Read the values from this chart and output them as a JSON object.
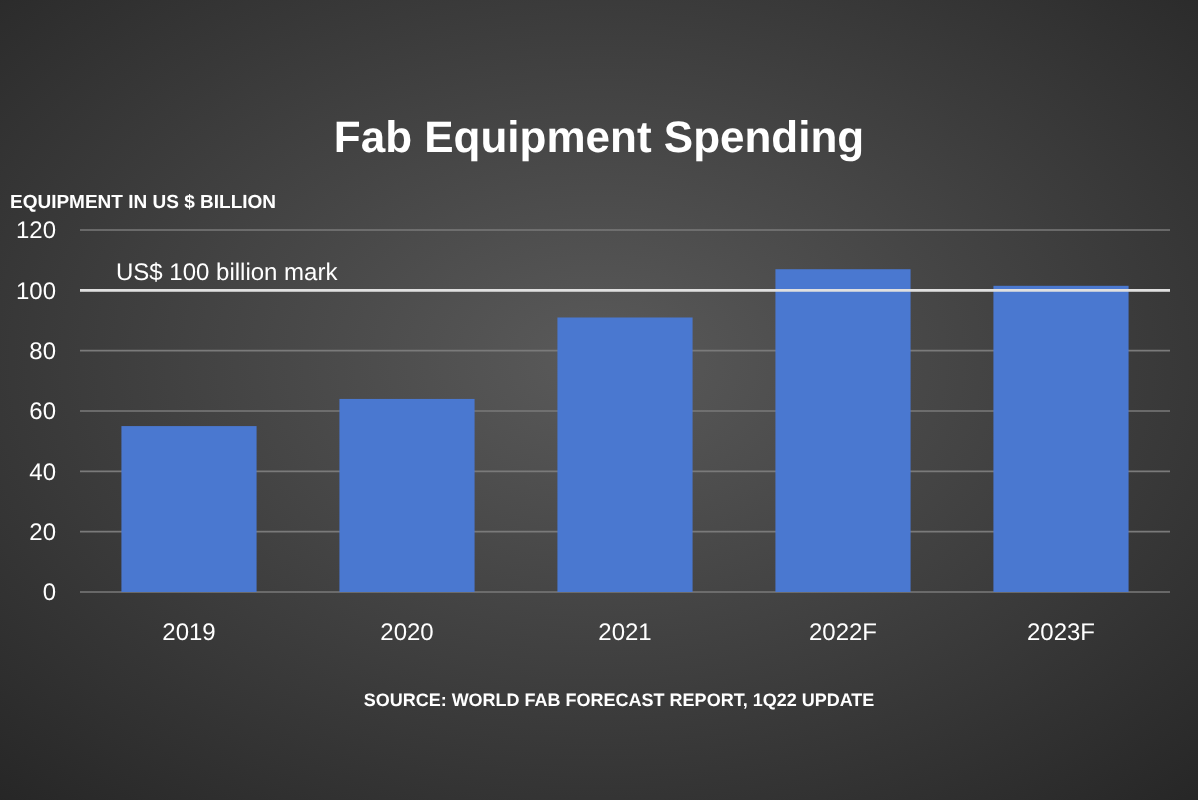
{
  "chart_data": {
    "type": "bar",
    "title": "Fab Equipment Spending",
    "ylabel": "EQUIPMENT IN US $ BILLION",
    "categories": [
      "2019",
      "2020",
      "2021",
      "2022F",
      "2023F"
    ],
    "values": [
      55,
      64,
      91,
      107,
      101.5
    ],
    "color": "#4a78d0",
    "ylim": [
      0,
      120
    ],
    "yticks": [
      0,
      20,
      40,
      60,
      80,
      100,
      120
    ],
    "grid": "y",
    "ref_lines": [
      {
        "axis": "y",
        "value": 100,
        "label": "US$ 100 billion mark",
        "color": "#e0e0e0"
      }
    ],
    "annotations": [
      "SOURCE: WORLD FAB FORECAST REPORT, 1Q22 UPDATE"
    ]
  }
}
